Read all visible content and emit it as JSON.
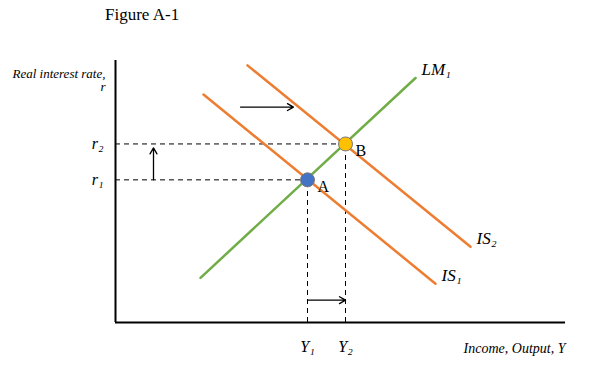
{
  "chart_data": {
    "type": "line",
    "title": "Figure A-1",
    "x_label": "Income, Output, Y",
    "y_label": "Real interest rate, r",
    "xlim": [
      0,
      45
    ],
    "ylim": [
      0,
      27
    ],
    "xticks": [
      {
        "value": 19.2,
        "label": "Y₁"
      },
      {
        "value": 23,
        "label": "Y₂"
      }
    ],
    "yticks": [
      {
        "value": 14.7,
        "label": "r₁"
      },
      {
        "value": 18.4,
        "label": "r₂"
      }
    ],
    "series": [
      {
        "name": "LM₁",
        "color": "#70AD47",
        "x": [
          8.5,
          30
        ],
        "values": [
          4.6,
          25.2
        ]
      },
      {
        "name": "IS₂",
        "color": "#ED7D31",
        "x": [
          13.2,
          35.5
        ],
        "values": [
          26.5,
          7.8
        ]
      },
      {
        "name": "IS₁",
        "color": "#ED7D31",
        "x": [
          8.8,
          32
        ],
        "values": [
          23.5,
          4
        ]
      }
    ],
    "points": [
      {
        "label": "A",
        "x": 19.2,
        "y": 14.7,
        "color": "#4472C4"
      },
      {
        "label": "B",
        "x": 23,
        "y": 18.4,
        "color": "#FFC000"
      }
    ],
    "arrows": [
      {
        "x": [
          12.5,
          17.8
        ],
        "y": [
          22.2,
          22.2
        ]
      },
      {
        "x": [
          3.8,
          3.8
        ],
        "y": [
          14.7,
          18.0
        ]
      },
      {
        "x": [
          19.2,
          23
        ],
        "y": [
          2.3,
          2.3
        ]
      }
    ]
  }
}
